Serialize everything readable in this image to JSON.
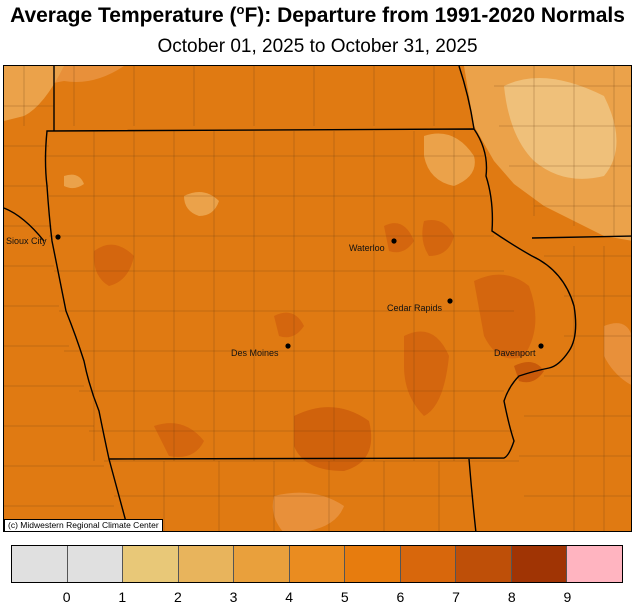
{
  "title": {
    "prefix": "Average Temperature (",
    "degree": "o",
    "suffix": "F): Departure from 1991-2020 Normals"
  },
  "subtitle": "October 01, 2025 to October 31, 2025",
  "credit": "(c) Midwestern Regional Climate Center",
  "cities": [
    {
      "name": "Sioux City"
    },
    {
      "name": "Waterloo"
    },
    {
      "name": "Cedar Rapids"
    },
    {
      "name": "Des Moines"
    },
    {
      "name": "Davenport"
    }
  ],
  "legend": {
    "tick_labels": [
      "0",
      "1",
      "2",
      "3",
      "4",
      "5",
      "6",
      "7",
      "8",
      "9"
    ],
    "bins": [
      {
        "range": "below 0",
        "color": "#e0e0e0"
      },
      {
        "range": "0 to 1",
        "color": "#e0e0e0"
      },
      {
        "range": "1 to 2",
        "color": "#e8c878"
      },
      {
        "range": "2 to 3",
        "color": "#e8b45c"
      },
      {
        "range": "3 to 4",
        "color": "#e9a03c"
      },
      {
        "range": "4 to 5",
        "color": "#ea8c20"
      },
      {
        "range": "5 to 6",
        "color": "#e77c0e"
      },
      {
        "range": "6 to 7",
        "color": "#d8670c"
      },
      {
        "range": "7 to 8",
        "color": "#be4f08"
      },
      {
        "range": "8 to 9",
        "color": "#a03404"
      },
      {
        "range": "above 9",
        "color": "#ffb4c0"
      }
    ]
  },
  "colors": {
    "dominant": "#e07a12",
    "warmer": "#d4660e",
    "cooler": "#eba24a",
    "coolest": "#efc07a"
  }
}
